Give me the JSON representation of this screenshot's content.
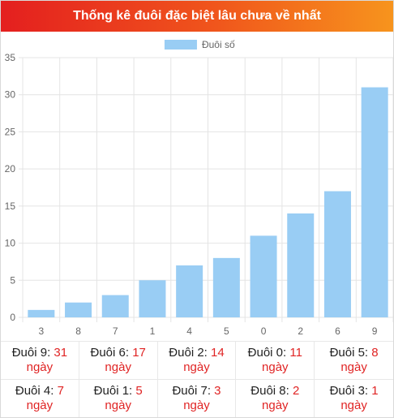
{
  "header": {
    "title": "Thống kê đuôi đặc biệt lâu chưa về nhất"
  },
  "colors": {
    "bar": "#99cdf4",
    "accent": "#e02424",
    "header_start": "#e41f1f",
    "header_end": "#f7941d"
  },
  "chart_data": {
    "type": "bar",
    "categories": [
      "3",
      "8",
      "7",
      "1",
      "4",
      "5",
      "0",
      "2",
      "6",
      "9"
    ],
    "series": [
      {
        "name": "Đuôi số",
        "values": [
          1,
          2,
          3,
          5,
          7,
          8,
          11,
          14,
          17,
          31
        ]
      }
    ],
    "ylim": [
      0,
      35
    ],
    "yticks": [
      0,
      5,
      10,
      15,
      20,
      25,
      30,
      35
    ],
    "grid": true,
    "legend": "top-center"
  },
  "stats": {
    "unit": "ngày",
    "items": [
      {
        "label": "Đuôi 9:",
        "value": "31"
      },
      {
        "label": "Đuôi 6:",
        "value": "17"
      },
      {
        "label": "Đuôi 2:",
        "value": "14"
      },
      {
        "label": "Đuôi 0:",
        "value": "11"
      },
      {
        "label": "Đuôi 5:",
        "value": "8"
      },
      {
        "label": "Đuôi 4:",
        "value": "7"
      },
      {
        "label": "Đuôi 1:",
        "value": "5"
      },
      {
        "label": "Đuôi 7:",
        "value": "3"
      },
      {
        "label": "Đuôi 8:",
        "value": "2"
      },
      {
        "label": "Đuôi 3:",
        "value": "1"
      }
    ]
  }
}
